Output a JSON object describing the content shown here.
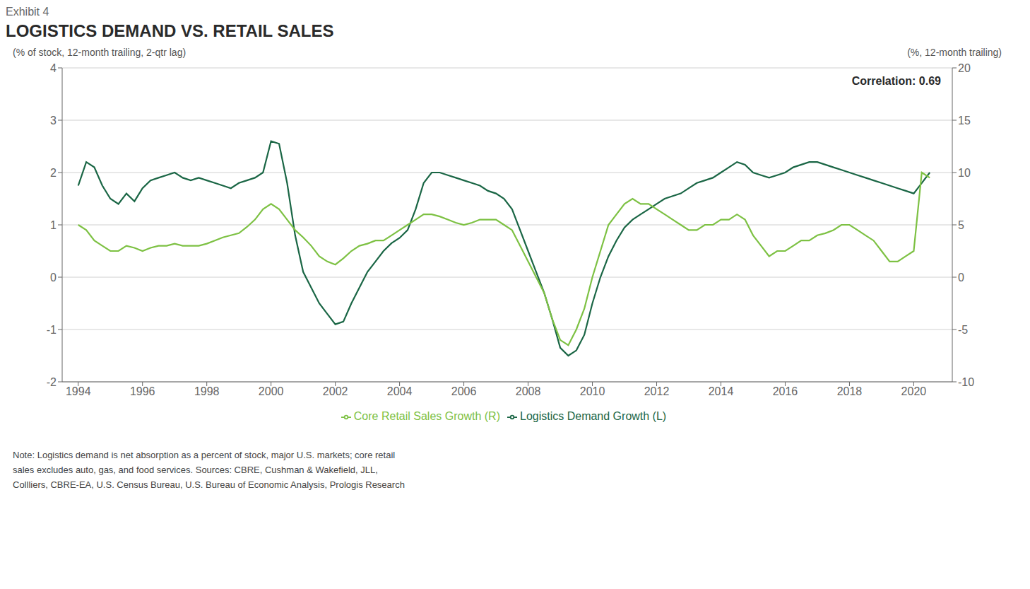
{
  "chart_data": {
    "type": "line",
    "label": "Exhibit 4",
    "title": "LOGISTICS DEMAND VS. RETAIL SALES",
    "ylabel": "(% of stock, 12-month trailing, 2-qtr lag)",
    "y2label": "(%, 12-month trailing)",
    "annotation": "Correlation: 0.69",
    "note": "Note: Logistics demand is net absorption as a percent of stock, major U.S. markets; core retail\nsales excludes auto, gas, and food services. Sources: CBRE, Cushman & Wakefield, JLL,\nCollliers, CBRE-EA, U.S. Census Bureau, U.S. Bureau of Economic Analysis, Prologis Research",
    "grid": true,
    "legend": "bottom",
    "xlim": [
      1993.5,
      2021.2
    ],
    "xticks": [
      1994,
      1996,
      1998,
      2000,
      2002,
      2004,
      2006,
      2008,
      2010,
      2012,
      2014,
      2016,
      2018,
      2020
    ],
    "ylim": [
      -2,
      4
    ],
    "yticks": [
      -2,
      -1,
      0,
      1,
      2,
      3,
      4
    ],
    "y2lim": [
      -10,
      20
    ],
    "y2ticks": [
      -10,
      -5,
      0,
      5,
      10,
      15,
      20
    ],
    "x": [
      1994.0,
      1994.25,
      1994.5,
      1994.75,
      1995.0,
      1995.25,
      1995.5,
      1995.75,
      1996.0,
      1996.25,
      1996.5,
      1996.75,
      1997.0,
      1997.25,
      1997.5,
      1997.75,
      1998.0,
      1998.25,
      1998.5,
      1998.75,
      1999.0,
      1999.25,
      1999.5,
      1999.75,
      2000.0,
      2000.25,
      2000.5,
      2000.75,
      2001.0,
      2001.25,
      2001.5,
      2001.75,
      2002.0,
      2002.25,
      2002.5,
      2002.75,
      2003.0,
      2003.25,
      2003.5,
      2003.75,
      2004.0,
      2004.25,
      2004.5,
      2004.75,
      2005.0,
      2005.25,
      2005.5,
      2005.75,
      2006.0,
      2006.25,
      2006.5,
      2006.75,
      2007.0,
      2007.25,
      2007.5,
      2007.75,
      2008.0,
      2008.25,
      2008.5,
      2008.75,
      2009.0,
      2009.25,
      2009.5,
      2009.75,
      2010.0,
      2010.25,
      2010.5,
      2010.75,
      2011.0,
      2011.25,
      2011.5,
      2011.75,
      2012.0,
      2012.25,
      2012.5,
      2012.75,
      2013.0,
      2013.25,
      2013.5,
      2013.75,
      2014.0,
      2014.25,
      2014.5,
      2014.75,
      2015.0,
      2015.25,
      2015.5,
      2015.75,
      2016.0,
      2016.25,
      2016.5,
      2016.75,
      2017.0,
      2017.25,
      2017.5,
      2017.75,
      2018.0,
      2018.25,
      2018.5,
      2018.75,
      2019.0,
      2019.25,
      2019.5,
      2019.75,
      2020.0,
      2020.25,
      2020.5
    ],
    "series": [
      {
        "name": "Logistics Demand Growth (L)",
        "color": "#1a6645",
        "axis": "y",
        "values": [
          1.75,
          2.2,
          2.1,
          1.75,
          1.5,
          1.4,
          1.6,
          1.45,
          1.7,
          1.85,
          1.9,
          1.95,
          2.0,
          1.9,
          1.85,
          1.9,
          1.85,
          1.8,
          1.75,
          1.7,
          1.8,
          1.85,
          1.9,
          2.0,
          2.6,
          2.55,
          1.8,
          0.8,
          0.1,
          -0.2,
          -0.5,
          -0.7,
          -0.9,
          -0.85,
          -0.5,
          -0.2,
          0.1,
          0.3,
          0.5,
          0.65,
          0.75,
          0.9,
          1.3,
          1.8,
          2.0,
          2.0,
          1.95,
          1.9,
          1.85,
          1.8,
          1.75,
          1.65,
          1.6,
          1.5,
          1.3,
          0.9,
          0.5,
          0.1,
          -0.3,
          -0.8,
          -1.35,
          -1.5,
          -1.4,
          -1.1,
          -0.5,
          0.0,
          0.4,
          0.7,
          0.95,
          1.1,
          1.2,
          1.3,
          1.4,
          1.5,
          1.55,
          1.6,
          1.7,
          1.8,
          1.85,
          1.9,
          2.0,
          2.1,
          2.2,
          2.15,
          2.0,
          1.95,
          1.9,
          1.95,
          2.0,
          2.1,
          2.15,
          2.2,
          2.2,
          2.15,
          2.1,
          2.05,
          2.0,
          1.95,
          1.9,
          1.85,
          1.8,
          1.75,
          1.7,
          1.65,
          1.6,
          1.8,
          2.0
        ]
      },
      {
        "name": "Core Retail Sales Growth (R)",
        "color": "#7dc143",
        "axis": "y2",
        "values": [
          5.0,
          4.5,
          3.5,
          3.0,
          2.5,
          2.5,
          3.0,
          2.8,
          2.5,
          2.8,
          3.0,
          3.0,
          3.2,
          3.0,
          3.0,
          3.0,
          3.2,
          3.5,
          3.8,
          4.0,
          4.2,
          4.8,
          5.5,
          6.5,
          7.0,
          6.5,
          5.5,
          4.5,
          3.8,
          3.0,
          2.0,
          1.5,
          1.2,
          1.8,
          2.5,
          3.0,
          3.2,
          3.5,
          3.5,
          4.0,
          4.5,
          5.0,
          5.5,
          6.0,
          6.0,
          5.8,
          5.5,
          5.2,
          5.0,
          5.2,
          5.5,
          5.5,
          5.5,
          5.0,
          4.5,
          3.0,
          1.5,
          0.0,
          -1.5,
          -4.0,
          -6.0,
          -6.5,
          -5.0,
          -3.0,
          0.0,
          2.5,
          5.0,
          6.0,
          7.0,
          7.5,
          7.0,
          7.0,
          6.5,
          6.0,
          5.5,
          5.0,
          4.5,
          4.5,
          5.0,
          5.0,
          5.5,
          5.5,
          6.0,
          5.5,
          4.0,
          3.0,
          2.0,
          2.5,
          2.5,
          3.0,
          3.5,
          3.5,
          4.0,
          4.2,
          4.5,
          5.0,
          5.0,
          4.5,
          4.0,
          3.5,
          2.5,
          1.5,
          1.5,
          2.0,
          2.5,
          10.0,
          9.5
        ]
      }
    ]
  }
}
